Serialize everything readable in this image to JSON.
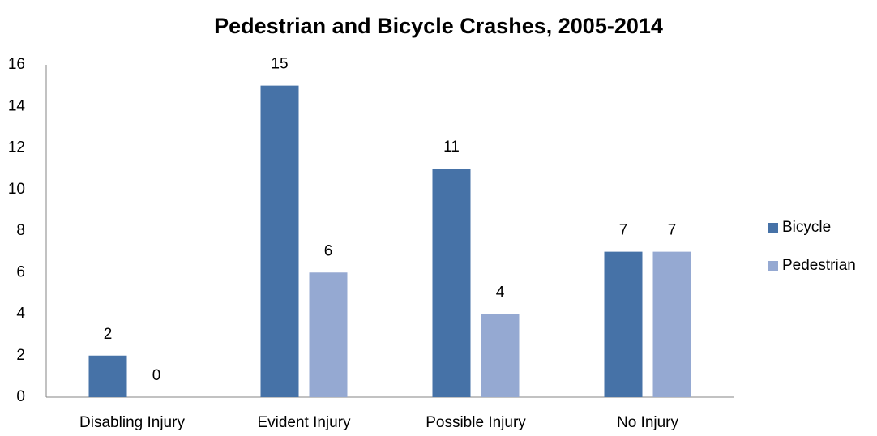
{
  "chart_data": {
    "type": "bar",
    "title": "Pedestrian and Bicycle Crashes, 2005-2014",
    "categories": [
      "Disabling Injury",
      "Evident Injury",
      "Possible Injury",
      "No Injury"
    ],
    "series": [
      {
        "name": "Bicycle",
        "color": "#4672a7",
        "values": [
          2,
          15,
          11,
          7
        ]
      },
      {
        "name": "Pedestrian",
        "color": "#95a9d2",
        "values": [
          0,
          6,
          4,
          7
        ]
      }
    ],
    "ylim": [
      0,
      16
    ],
    "yticks": [
      0,
      2,
      4,
      6,
      8,
      10,
      12,
      14,
      16
    ],
    "grid": false,
    "legend": "right"
  }
}
